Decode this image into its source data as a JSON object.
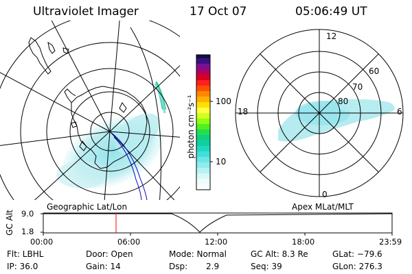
{
  "header": {
    "instrument": "Ultraviolet Imager",
    "date": "17 Oct 07",
    "time": "05:06:49 UT"
  },
  "colorbar": {
    "unit_label": "photon cm⁻²s⁻¹",
    "ticks": [
      "100",
      "10"
    ]
  },
  "geo_map": {
    "label": "Geographic Lat/Lon"
  },
  "polar_plot": {
    "label": "Apex MLat/MLT",
    "mlt_labels": [
      "12",
      "18",
      "6",
      "0"
    ],
    "mlat_labels": [
      "60",
      "70",
      "80"
    ]
  },
  "altitude_plot": {
    "ylabel": "GC Alt",
    "y_ticks": [
      "9.0",
      "1.8"
    ],
    "x_ticks": [
      "00:00",
      "06:00",
      "12:00",
      "18:00",
      "23:59"
    ],
    "marker_time": "05:06:49"
  },
  "info": {
    "row1": {
      "filter": "Flt: LBHL",
      "door": "Door: Open",
      "mode": "Mode: Normal",
      "gc_alt": "GC Alt: 8.3 Re",
      "glat": "GLat: −79.6"
    },
    "row2": {
      "ip": "IP: 36.0",
      "gain": "Gain: 14",
      "dsp_label": "Dsp:",
      "dsp_value": "2.9",
      "seq": "Seq: 39",
      "glon": "GLon: 276.3"
    }
  },
  "colors": {
    "aurora": "#aee9ee",
    "aurora_dense": "#7fdbe6",
    "aurora_hot": "#2ecf88",
    "marker": "#ff0000",
    "track": "#0000c0"
  }
}
